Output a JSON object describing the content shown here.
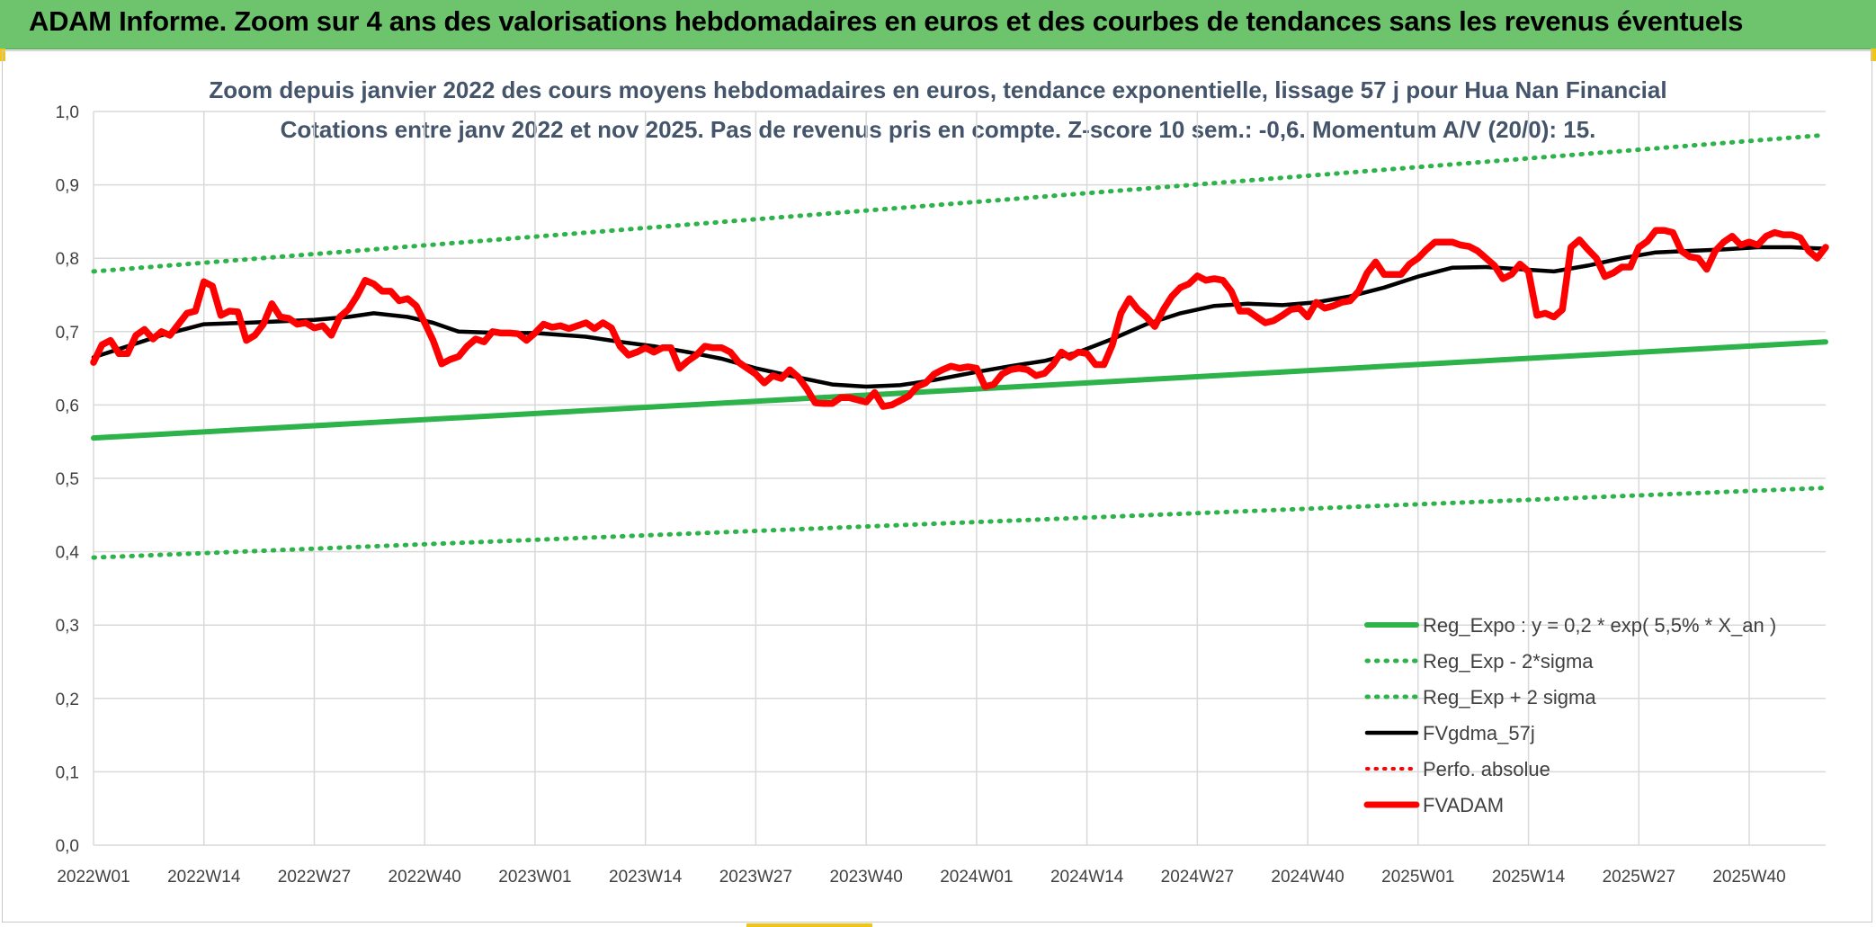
{
  "header": {
    "title": "ADAM Informe. Zoom sur 4 ans des valorisations hebdomadaires en euros et des courbes de tendances sans les revenus éventuels"
  },
  "chart_data": {
    "type": "line",
    "title_line1": "Zoom depuis janvier 2022 des cours moyens hebdomadaires en euros, tendance exponentielle, lissage 57 j pour Hua Nan Financial",
    "title_line2": "Cotations entre janv 2022 et nov 2025. Pas de revenus pris en compte. Z-score 10 sem.: -0,6. Momentum A/V (20/0): 15.",
    "ylim": [
      0,
      1.0
    ],
    "yticks": [
      "0,0",
      "0,1",
      "0,2",
      "0,3",
      "0,4",
      "0,5",
      "0,6",
      "0,7",
      "0,8",
      "0,9",
      "1,0"
    ],
    "xlim": [
      0,
      204
    ],
    "xticks": [
      {
        "label": "2022W01",
        "x": 0
      },
      {
        "label": "2022W14",
        "x": 13
      },
      {
        "label": "2022W27",
        "x": 26
      },
      {
        "label": "2022W40",
        "x": 39
      },
      {
        "label": "2023W01",
        "x": 52
      },
      {
        "label": "2023W14",
        "x": 65
      },
      {
        "label": "2023W27",
        "x": 78
      },
      {
        "label": "2023W40",
        "x": 91
      },
      {
        "label": "2024W01",
        "x": 104
      },
      {
        "label": "2024W14",
        "x": 117
      },
      {
        "label": "2024W27",
        "x": 130
      },
      {
        "label": "2024W40",
        "x": 143
      },
      {
        "label": "2025W01",
        "x": 156
      },
      {
        "label": "2025W14",
        "x": 169
      },
      {
        "label": "2025W27",
        "x": 182
      },
      {
        "label": "2025W40",
        "x": 195
      }
    ],
    "grid": true,
    "legend_position": "bottom-right",
    "series": [
      {
        "key": "reg",
        "name": "Reg_Expo : y = 0,2 * exp( 5,5% *  X_an )",
        "color": "#2db34a",
        "style": "solid",
        "start": 0.555,
        "end": 0.686
      },
      {
        "key": "minus",
        "name": "Reg_Exp - 2*sigma",
        "color": "#2db34a",
        "style": "dotted",
        "start": 0.392,
        "end": 0.487
      },
      {
        "key": "plus",
        "name": "Reg_Exp + 2 sigma",
        "color": "#2db34a",
        "style": "dotted",
        "start": 0.782,
        "end": 0.968
      },
      {
        "key": "smooth",
        "name": "FVgdma_57j",
        "color": "#000000",
        "style": "solid",
        "points": [
          [
            0,
            0.665
          ],
          [
            4,
            0.68
          ],
          [
            8,
            0.695
          ],
          [
            13,
            0.71
          ],
          [
            18,
            0.712
          ],
          [
            22,
            0.714
          ],
          [
            26,
            0.716
          ],
          [
            30,
            0.72
          ],
          [
            33,
            0.725
          ],
          [
            37,
            0.72
          ],
          [
            40,
            0.712
          ],
          [
            43,
            0.7
          ],
          [
            48,
            0.698
          ],
          [
            52,
            0.698
          ],
          [
            58,
            0.693
          ],
          [
            62,
            0.686
          ],
          [
            66,
            0.68
          ],
          [
            70,
            0.672
          ],
          [
            74,
            0.663
          ],
          [
            78,
            0.65
          ],
          [
            82,
            0.64
          ],
          [
            87,
            0.628
          ],
          [
            91,
            0.625
          ],
          [
            95,
            0.627
          ],
          [
            99,
            0.634
          ],
          [
            104,
            0.645
          ],
          [
            108,
            0.653
          ],
          [
            112,
            0.66
          ],
          [
            116,
            0.672
          ],
          [
            120,
            0.69
          ],
          [
            124,
            0.71
          ],
          [
            128,
            0.725
          ],
          [
            132,
            0.735
          ],
          [
            136,
            0.738
          ],
          [
            140,
            0.736
          ],
          [
            144,
            0.74
          ],
          [
            148,
            0.748
          ],
          [
            152,
            0.76
          ],
          [
            156,
            0.775
          ],
          [
            160,
            0.787
          ],
          [
            164,
            0.788
          ],
          [
            168,
            0.785
          ],
          [
            172,
            0.782
          ],
          [
            176,
            0.79
          ],
          [
            180,
            0.8
          ],
          [
            184,
            0.808
          ],
          [
            188,
            0.81
          ],
          [
            192,
            0.812
          ],
          [
            196,
            0.815
          ],
          [
            200,
            0.815
          ],
          [
            204,
            0.813
          ]
        ]
      },
      {
        "key": "perfo",
        "name": "Perfo. absolue",
        "color": "#ff0000",
        "style": "dotted",
        "points": []
      },
      {
        "key": "fvadam",
        "name": "FVADAM",
        "color": "#ff0000",
        "style": "solid",
        "points": [
          [
            0,
            0.658
          ],
          [
            1,
            0.682
          ],
          [
            2,
            0.688
          ],
          [
            3,
            0.67
          ],
          [
            4,
            0.67
          ],
          [
            5,
            0.695
          ],
          [
            6,
            0.703
          ],
          [
            7,
            0.69
          ],
          [
            8,
            0.7
          ],
          [
            9,
            0.695
          ],
          [
            10,
            0.71
          ],
          [
            11,
            0.725
          ],
          [
            12,
            0.728
          ],
          [
            13,
            0.768
          ],
          [
            14,
            0.762
          ],
          [
            15,
            0.722
          ],
          [
            16,
            0.728
          ],
          [
            17,
            0.727
          ],
          [
            18,
            0.688
          ],
          [
            19,
            0.695
          ],
          [
            20,
            0.71
          ],
          [
            21,
            0.738
          ],
          [
            22,
            0.72
          ],
          [
            23,
            0.718
          ],
          [
            24,
            0.71
          ],
          [
            25,
            0.712
          ],
          [
            26,
            0.705
          ],
          [
            27,
            0.708
          ],
          [
            28,
            0.695
          ],
          [
            29,
            0.72
          ],
          [
            30,
            0.73
          ],
          [
            31,
            0.748
          ],
          [
            32,
            0.77
          ],
          [
            33,
            0.765
          ],
          [
            34,
            0.755
          ],
          [
            35,
            0.755
          ],
          [
            36,
            0.742
          ],
          [
            37,
            0.745
          ],
          [
            38,
            0.735
          ],
          [
            39,
            0.712
          ],
          [
            40,
            0.688
          ],
          [
            41,
            0.656
          ],
          [
            42,
            0.662
          ],
          [
            43,
            0.666
          ],
          [
            44,
            0.68
          ],
          [
            45,
            0.69
          ],
          [
            46,
            0.686
          ],
          [
            47,
            0.7
          ],
          [
            48,
            0.698
          ],
          [
            49,
            0.698
          ],
          [
            50,
            0.697
          ],
          [
            51,
            0.688
          ],
          [
            52,
            0.698
          ],
          [
            53,
            0.71
          ],
          [
            54,
            0.706
          ],
          [
            55,
            0.708
          ],
          [
            56,
            0.704
          ],
          [
            57,
            0.708
          ],
          [
            58,
            0.712
          ],
          [
            59,
            0.704
          ],
          [
            60,
            0.712
          ],
          [
            61,
            0.705
          ],
          [
            62,
            0.68
          ],
          [
            63,
            0.668
          ],
          [
            64,
            0.672
          ],
          [
            65,
            0.678
          ],
          [
            66,
            0.672
          ],
          [
            67,
            0.678
          ],
          [
            68,
            0.678
          ],
          [
            69,
            0.65
          ],
          [
            70,
            0.66
          ],
          [
            71,
            0.668
          ],
          [
            72,
            0.68
          ],
          [
            73,
            0.678
          ],
          [
            74,
            0.678
          ],
          [
            75,
            0.672
          ],
          [
            76,
            0.658
          ],
          [
            77,
            0.65
          ],
          [
            78,
            0.642
          ],
          [
            79,
            0.63
          ],
          [
            80,
            0.64
          ],
          [
            81,
            0.636
          ],
          [
            82,
            0.648
          ],
          [
            83,
            0.638
          ],
          [
            84,
            0.622
          ],
          [
            85,
            0.603
          ],
          [
            86,
            0.602
          ],
          [
            87,
            0.602
          ],
          [
            88,
            0.61
          ],
          [
            89,
            0.61
          ],
          [
            90,
            0.607
          ],
          [
            91,
            0.604
          ],
          [
            92,
            0.617
          ],
          [
            93,
            0.598
          ],
          [
            94,
            0.6
          ],
          [
            95,
            0.606
          ],
          [
            96,
            0.612
          ],
          [
            97,
            0.625
          ],
          [
            98,
            0.63
          ],
          [
            99,
            0.642
          ],
          [
            100,
            0.648
          ],
          [
            101,
            0.653
          ],
          [
            102,
            0.65
          ],
          [
            103,
            0.652
          ],
          [
            104,
            0.65
          ],
          [
            105,
            0.625
          ],
          [
            106,
            0.628
          ],
          [
            107,
            0.642
          ],
          [
            108,
            0.648
          ],
          [
            109,
            0.65
          ],
          [
            110,
            0.648
          ],
          [
            111,
            0.64
          ],
          [
            112,
            0.643
          ],
          [
            113,
            0.655
          ],
          [
            114,
            0.672
          ],
          [
            115,
            0.665
          ],
          [
            116,
            0.672
          ],
          [
            117,
            0.67
          ],
          [
            118,
            0.655
          ],
          [
            119,
            0.655
          ],
          [
            120,
            0.682
          ],
          [
            121,
            0.725
          ],
          [
            122,
            0.745
          ],
          [
            123,
            0.73
          ],
          [
            124,
            0.72
          ],
          [
            125,
            0.707
          ],
          [
            126,
            0.73
          ],
          [
            127,
            0.748
          ],
          [
            128,
            0.76
          ],
          [
            129,
            0.765
          ],
          [
            130,
            0.776
          ],
          [
            131,
            0.77
          ],
          [
            132,
            0.772
          ],
          [
            133,
            0.77
          ],
          [
            134,
            0.755
          ],
          [
            135,
            0.728
          ],
          [
            136,
            0.728
          ],
          [
            137,
            0.72
          ],
          [
            138,
            0.712
          ],
          [
            139,
            0.715
          ],
          [
            140,
            0.722
          ],
          [
            141,
            0.73
          ],
          [
            142,
            0.732
          ],
          [
            143,
            0.72
          ],
          [
            144,
            0.74
          ],
          [
            145,
            0.732
          ],
          [
            146,
            0.735
          ],
          [
            147,
            0.74
          ],
          [
            148,
            0.742
          ],
          [
            149,
            0.755
          ],
          [
            150,
            0.78
          ],
          [
            151,
            0.795
          ],
          [
            152,
            0.778
          ],
          [
            153,
            0.778
          ],
          [
            154,
            0.778
          ],
          [
            155,
            0.792
          ],
          [
            156,
            0.8
          ],
          [
            157,
            0.812
          ],
          [
            158,
            0.822
          ],
          [
            159,
            0.822
          ],
          [
            160,
            0.822
          ],
          [
            161,
            0.818
          ],
          [
            162,
            0.816
          ],
          [
            163,
            0.81
          ],
          [
            164,
            0.8
          ],
          [
            165,
            0.79
          ],
          [
            166,
            0.772
          ],
          [
            167,
            0.778
          ],
          [
            168,
            0.792
          ],
          [
            169,
            0.782
          ],
          [
            170,
            0.722
          ],
          [
            171,
            0.725
          ],
          [
            172,
            0.72
          ],
          [
            173,
            0.73
          ],
          [
            174,
            0.815
          ],
          [
            175,
            0.825
          ],
          [
            176,
            0.812
          ],
          [
            177,
            0.8
          ],
          [
            178,
            0.775
          ],
          [
            179,
            0.78
          ],
          [
            180,
            0.788
          ],
          [
            181,
            0.788
          ],
          [
            182,
            0.815
          ],
          [
            183,
            0.823
          ],
          [
            184,
            0.838
          ],
          [
            185,
            0.838
          ],
          [
            186,
            0.835
          ],
          [
            187,
            0.81
          ],
          [
            188,
            0.802
          ],
          [
            189,
            0.8
          ],
          [
            190,
            0.785
          ],
          [
            191,
            0.81
          ],
          [
            192,
            0.822
          ],
          [
            193,
            0.83
          ],
          [
            194,
            0.818
          ],
          [
            195,
            0.822
          ],
          [
            196,
            0.818
          ],
          [
            197,
            0.83
          ],
          [
            198,
            0.835
          ],
          [
            199,
            0.832
          ],
          [
            200,
            0.832
          ],
          [
            201,
            0.828
          ],
          [
            202,
            0.81
          ],
          [
            203,
            0.8
          ],
          [
            204,
            0.815
          ]
        ]
      }
    ]
  }
}
